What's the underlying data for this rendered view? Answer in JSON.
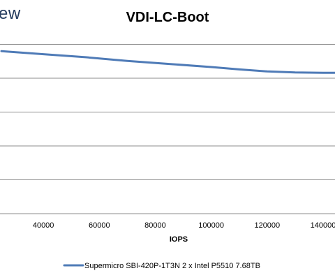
{
  "brand": {
    "text": "ew"
  },
  "chart_data": {
    "type": "line",
    "title": "VDI-LC-Boot",
    "xlabel": "IOPS",
    "ylabel": "",
    "x_ticks": [
      40000,
      60000,
      80000,
      100000,
      120000,
      140000
    ],
    "x_tick_labels": [
      "40000",
      "60000",
      "80000",
      "100000",
      "120000",
      "140000"
    ],
    "xlim": [
      25000,
      145000
    ],
    "ylim": [
      0,
      6
    ],
    "y_gridlines": [
      1,
      2,
      3,
      4,
      5
    ],
    "grid": true,
    "legend": "bottom",
    "series": [
      {
        "name": "Supermicro SBI-420P-1T3N 2 x Intel P5510 7.68TB",
        "color": "#4f7bb7",
        "x": [
          25000,
          40000,
          55000,
          70000,
          85000,
          100000,
          110000,
          120000,
          130000,
          140000,
          145000
        ],
        "y": [
          4.8,
          4.71,
          4.62,
          4.51,
          4.42,
          4.33,
          4.26,
          4.2,
          4.17,
          4.16,
          4.16
        ]
      }
    ]
  }
}
